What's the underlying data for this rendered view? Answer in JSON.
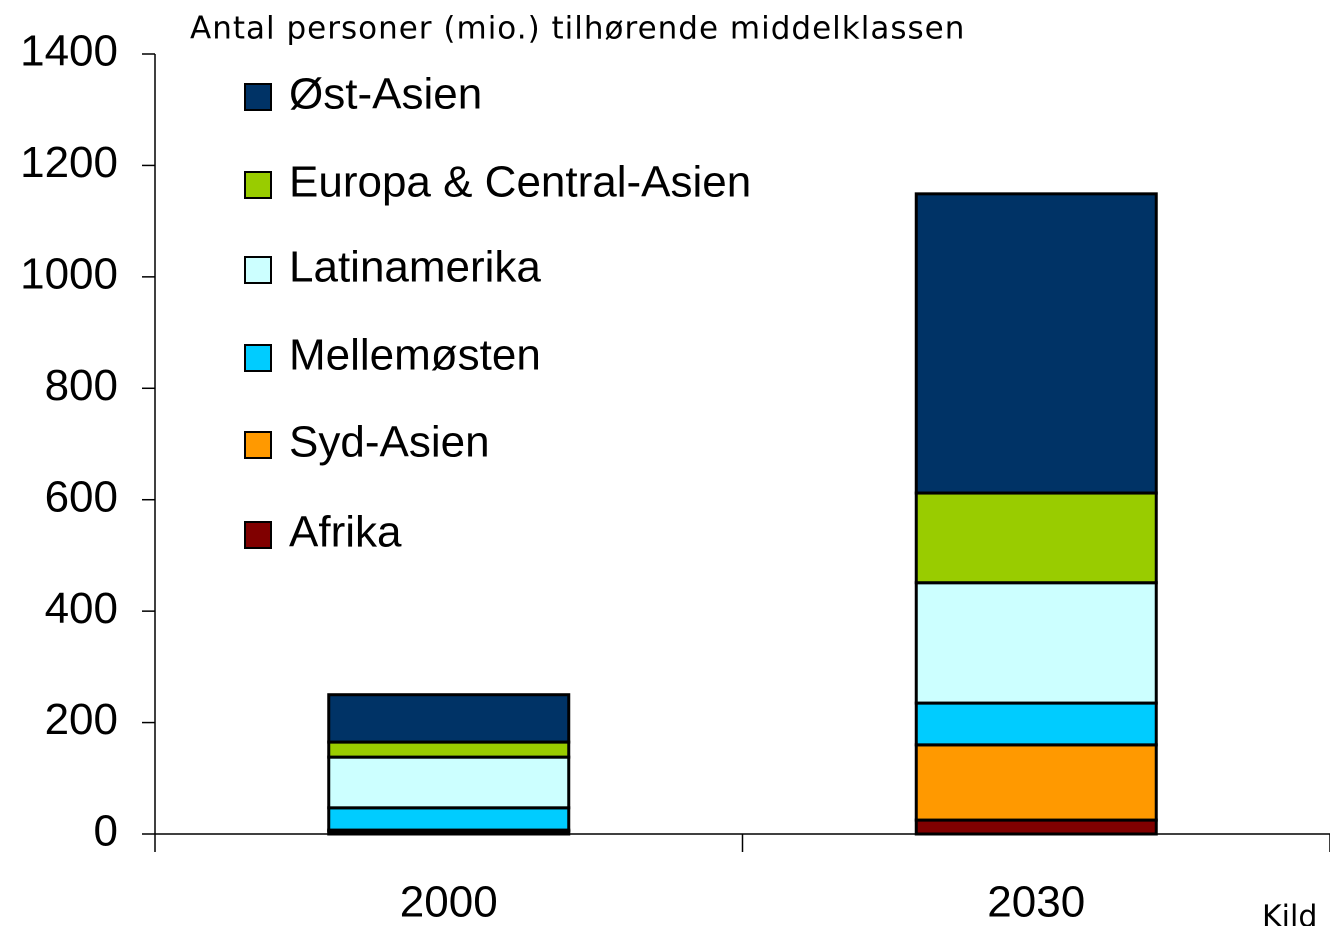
{
  "chart_data": {
    "type": "stacked_bar",
    "title": "Antal personer (mio.) tilhørende middelklassen",
    "annotation": "Kild",
    "categories": [
      "2000",
      "2030"
    ],
    "series": [
      {
        "name": "Afrika",
        "color": "#800000",
        "values": [
          5,
          25
        ]
      },
      {
        "name": "Syd-Asien",
        "color": "#ff9900",
        "values": [
          2,
          135
        ]
      },
      {
        "name": "Mellemøsten",
        "color": "#00ccff",
        "values": [
          40,
          75
        ]
      },
      {
        "name": "Latinamerika",
        "color": "#ccffff",
        "values": [
          91,
          216
        ]
      },
      {
        "name": "Europa & Central-Asien",
        "color": "#99cc00",
        "values": [
          27,
          161
        ]
      },
      {
        "name": "Øst-Asien",
        "color": "#003366",
        "values": [
          85,
          537
        ]
      }
    ],
    "ylim": [
      0,
      1400
    ],
    "yticks": [
      0,
      200,
      400,
      600,
      800,
      1000,
      1200,
      1400
    ],
    "legend": "upper left",
    "grid": false
  }
}
